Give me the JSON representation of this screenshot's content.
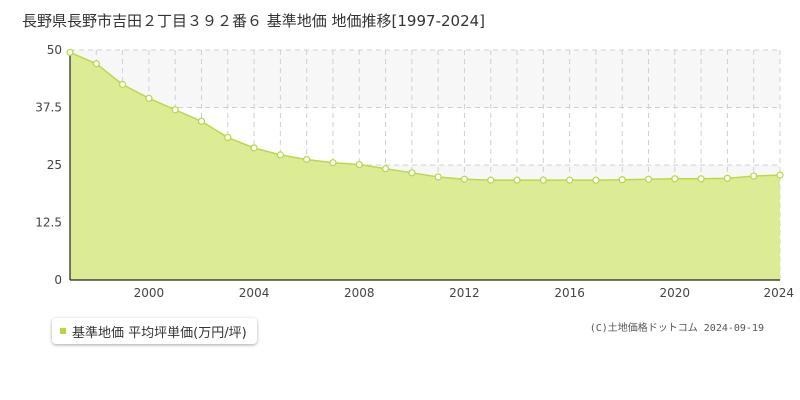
{
  "chart_data": {
    "type": "area",
    "title": "長野県長野市吉田２丁目３９２番６ 基準地価 地価推移[1997-2024]",
    "x": [
      1997,
      1998,
      1999,
      2000,
      2001,
      2002,
      2003,
      2004,
      2005,
      2006,
      2007,
      2008,
      2009,
      2010,
      2011,
      2012,
      2013,
      2014,
      2015,
      2016,
      2017,
      2018,
      2019,
      2020,
      2021,
      2022,
      2023,
      2024
    ],
    "series": [
      {
        "name": "基準地価 平均坪単価(万円/坪)",
        "values": [
          49.5,
          47.0,
          42.5,
          39.5,
          37.0,
          34.5,
          31.0,
          28.7,
          27.2,
          26.2,
          25.5,
          25.1,
          24.2,
          23.3,
          22.4,
          21.9,
          21.7,
          21.7,
          21.7,
          21.7,
          21.7,
          21.8,
          21.9,
          22.0,
          22.0,
          22.1,
          22.6,
          22.8
        ]
      }
    ],
    "xlim": [
      1997,
      2024
    ],
    "ylim": [
      0,
      50
    ],
    "y_ticks": [
      "0",
      "12.5",
      "25",
      "37.5",
      "50"
    ],
    "x_ticks": [
      "2000",
      "2004",
      "2008",
      "2012",
      "2016",
      "2020",
      "2024"
    ],
    "grid": true,
    "legend_position": "bottom-left",
    "colors": {
      "area": "#dcec95",
      "line": "#bcd84a",
      "point_fill": "#ffffff",
      "point_stroke": "#b5d742",
      "band": "#f7f7f7",
      "grid": "#d0d0d0"
    }
  },
  "legend": {
    "label": "基準地価 平均坪単価(万円/坪)"
  },
  "copyright": "(C)土地価格ドットコム 2024-09-19"
}
